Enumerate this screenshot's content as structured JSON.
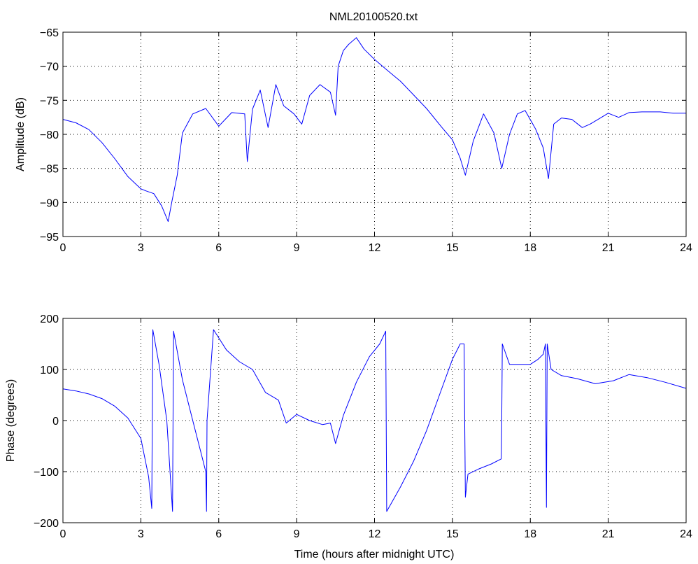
{
  "figure": {
    "title": "NML20100520.txt"
  },
  "chart_data": [
    {
      "type": "line",
      "title": "NML20100520.txt",
      "xlabel": "",
      "ylabel": "Amplitude (dB)",
      "xlim": [
        0,
        24
      ],
      "ylim": [
        -95,
        -65
      ],
      "xticks": [
        "0",
        "3",
        "6",
        "9",
        "12",
        "15",
        "18",
        "21",
        "24"
      ],
      "yticks": [
        "-65",
        "-70",
        "-75",
        "-80",
        "-85",
        "-90",
        "-95"
      ],
      "grid": true,
      "line_color": "#0000ff",
      "series": [
        {
          "x": [
            0,
            0.5,
            1,
            1.5,
            2,
            2.5,
            3,
            3.2,
            3.5,
            3.8,
            4.05,
            4.2,
            4.4,
            4.6,
            5.0,
            5.5,
            6.0,
            6.2,
            6.5,
            7.0,
            7.1,
            7.3,
            7.6,
            7.9,
            8.2,
            8.5,
            8.9,
            9.2,
            9.5,
            9.9,
            10.3,
            10.5,
            10.6,
            10.8,
            11.0,
            11.3,
            11.6,
            12.0,
            12.4,
            13.0,
            13.5,
            14.0,
            14.6,
            15.0,
            15.3,
            15.5,
            15.8,
            16.2,
            16.6,
            16.9,
            17.2,
            17.5,
            17.8,
            18.2,
            18.5,
            18.7,
            18.9,
            19.2,
            19.6,
            20.0,
            20.3,
            20.7,
            21.0,
            21.4,
            21.8,
            22.3,
            23.0,
            23.5,
            24.0
          ],
          "y": [
            -77.8,
            -78.3,
            -79.3,
            -81.2,
            -83.6,
            -86.2,
            -88.0,
            -88.3,
            -88.7,
            -90.5,
            -92.8,
            -89.8,
            -86.0,
            -79.8,
            -77.0,
            -76.2,
            -78.8,
            -78.0,
            -76.8,
            -77.0,
            -84.0,
            -76.3,
            -73.5,
            -79.0,
            -72.7,
            -75.8,
            -77.0,
            -78.5,
            -74.3,
            -72.7,
            -73.8,
            -77.2,
            -70.0,
            -67.7,
            -66.8,
            -65.8,
            -67.5,
            -69.0,
            -70.3,
            -72.2,
            -74.2,
            -76.2,
            -79.0,
            -80.8,
            -83.5,
            -86.0,
            -81.0,
            -77.0,
            -79.8,
            -85.0,
            -80.0,
            -77.0,
            -76.5,
            -79.2,
            -82.0,
            -86.5,
            -78.5,
            -77.6,
            -77.8,
            -79.0,
            -78.5,
            -77.6,
            -76.9,
            -77.5,
            -76.8,
            -76.7,
            -76.7,
            -76.9,
            -76.9
          ]
        }
      ]
    },
    {
      "type": "line",
      "title": "",
      "xlabel": "Time (hours after midnight UTC)",
      "ylabel": "Phase (degrees)",
      "xlim": [
        0,
        24
      ],
      "ylim": [
        -200,
        200
      ],
      "xticks": [
        "0",
        "3",
        "6",
        "9",
        "12",
        "15",
        "18",
        "21",
        "24"
      ],
      "yticks": [
        "200",
        "100",
        "0",
        "-100",
        "-200"
      ],
      "grid": true,
      "line_color": "#0000ff",
      "series": [
        {
          "x": [
            0,
            0.5,
            1.0,
            1.5,
            2.0,
            2.5,
            3.0,
            3.3,
            3.42,
            3.44,
            3.46,
            3.7,
            4.0,
            4.22,
            4.24,
            4.26,
            4.6,
            5.0,
            5.3,
            5.5,
            5.53,
            5.55,
            5.8,
            6.3,
            6.8,
            7.3,
            7.8,
            8.3,
            8.6,
            9.0,
            9.5,
            10.0,
            10.3,
            10.5,
            10.8,
            11.3,
            11.8,
            12.2,
            12.43,
            12.45,
            12.47,
            13.0,
            13.5,
            14.0,
            14.5,
            15.0,
            15.3,
            15.45,
            15.47,
            15.5,
            15.6,
            16.0,
            16.5,
            16.88,
            16.9,
            16.92,
            17.2,
            17.6,
            18.0,
            18.3,
            18.5,
            18.58,
            18.6,
            18.62,
            18.65,
            18.8,
            19.2,
            19.8,
            20.5,
            21.2,
            21.8,
            22.5,
            23.2,
            24.0
          ],
          "y": [
            62,
            58,
            52,
            43,
            28,
            5,
            -35,
            -110,
            -172,
            0,
            178,
            110,
            0,
            -178,
            0,
            175,
            80,
            0,
            -60,
            -100,
            -178,
            0,
            178,
            138,
            115,
            100,
            55,
            40,
            -5,
            12,
            0,
            -8,
            -5,
            -45,
            10,
            75,
            125,
            150,
            175,
            0,
            -178,
            -130,
            -80,
            -20,
            50,
            120,
            150,
            150,
            20,
            -150,
            -105,
            -95,
            -85,
            -75,
            0,
            150,
            110,
            110,
            110,
            120,
            130,
            150,
            0,
            -170,
            150,
            100,
            88,
            82,
            72,
            78,
            90,
            84,
            75,
            63
          ]
        }
      ]
    }
  ]
}
